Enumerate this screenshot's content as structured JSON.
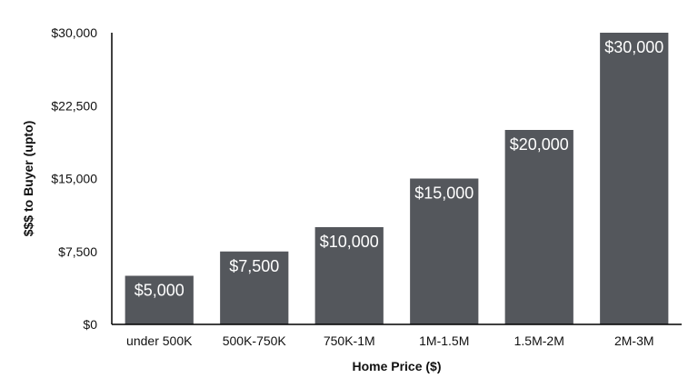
{
  "chart_data": {
    "type": "bar",
    "categories": [
      "under 500K",
      "500K-750K",
      "750K-1M",
      "1M-1.5M",
      "1.5M-2M",
      "2M-3M"
    ],
    "values": [
      5000,
      7500,
      10000,
      15000,
      20000,
      30000
    ],
    "value_labels": [
      "$5,000",
      "$7,500",
      "$10,000",
      "$15,000",
      "$20,000",
      "$30,000"
    ],
    "title": "",
    "xlabel": "Home Price ($)",
    "ylabel": "$$$ to Buyer (upto)",
    "ylim": [
      0,
      30000
    ],
    "yticks": [
      0,
      7500,
      15000,
      22500,
      30000
    ],
    "ytick_labels": [
      "$0",
      "$7,500",
      "$15,000",
      "$22,500",
      "$30,000"
    ],
    "grid": false,
    "legend": "none",
    "colors": {
      "bar": "#54575c",
      "axis": "#000000",
      "text": "#111111",
      "label": "#ffffff"
    }
  }
}
